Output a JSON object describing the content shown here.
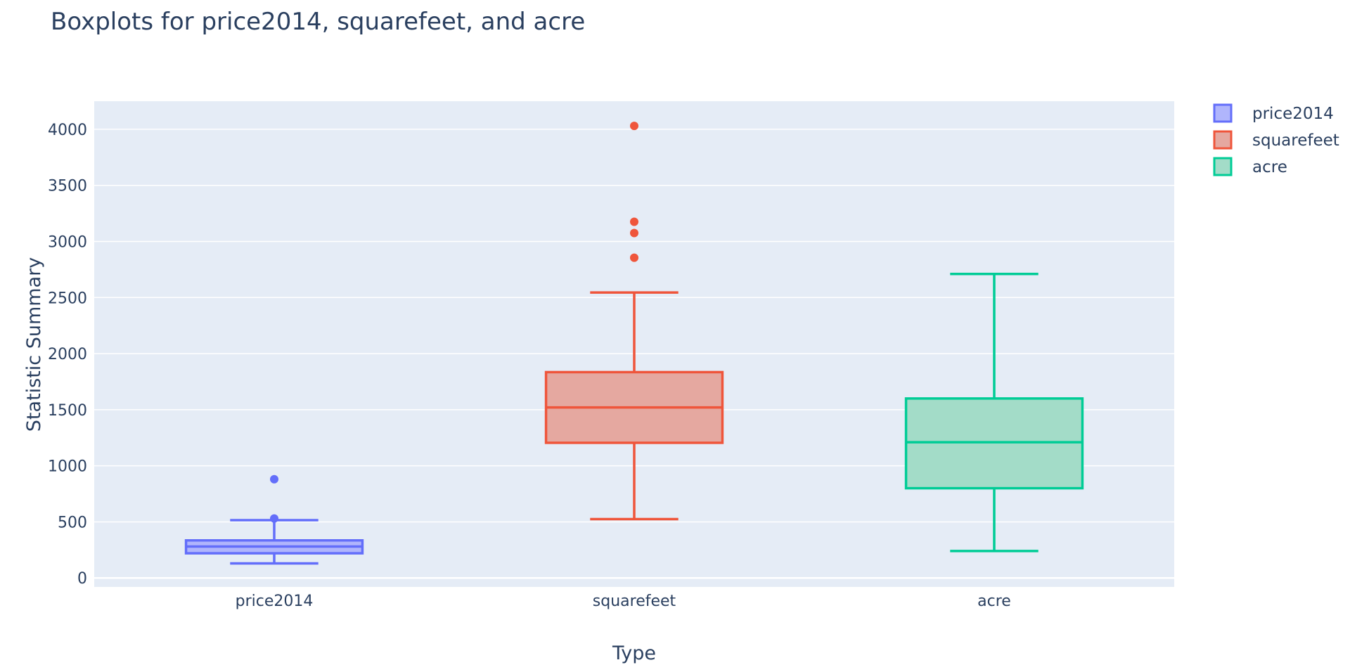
{
  "chart_data": {
    "type": "box",
    "title": "Boxplots for price2014, squarefeet, and acre",
    "xlabel": "Type",
    "ylabel": "Statistic Summary",
    "ylim": [
      -80,
      4250
    ],
    "yticks": [
      0,
      500,
      1000,
      1500,
      2000,
      2500,
      3000,
      3500,
      4000
    ],
    "grid": true,
    "legend_position": "top-right",
    "plot_bg": "#e5ecf6",
    "categories": [
      "price2014",
      "squarefeet",
      "acre"
    ],
    "series": [
      {
        "name": "price2014",
        "category": "price2014",
        "color": "#636efa",
        "fill": "#b0b5fc",
        "lower_fence": 130,
        "q1": 220,
        "median": 280,
        "q3": 335,
        "upper_fence": 515,
        "outliers": [
          530,
          880
        ]
      },
      {
        "name": "squarefeet",
        "category": "squarefeet",
        "color": "#EF553B",
        "fill": "#e5a8a0",
        "lower_fence": 525,
        "q1": 1205,
        "median": 1520,
        "q3": 1835,
        "upper_fence": 2545,
        "outliers": [
          2855,
          3075,
          3175,
          4030
        ]
      },
      {
        "name": "acre",
        "category": "acre",
        "color": "#00cc96",
        "fill": "#a3dcc8",
        "lower_fence": 240,
        "q1": 800,
        "median": 1210,
        "q3": 1600,
        "upper_fence": 2710,
        "outliers": []
      }
    ]
  }
}
